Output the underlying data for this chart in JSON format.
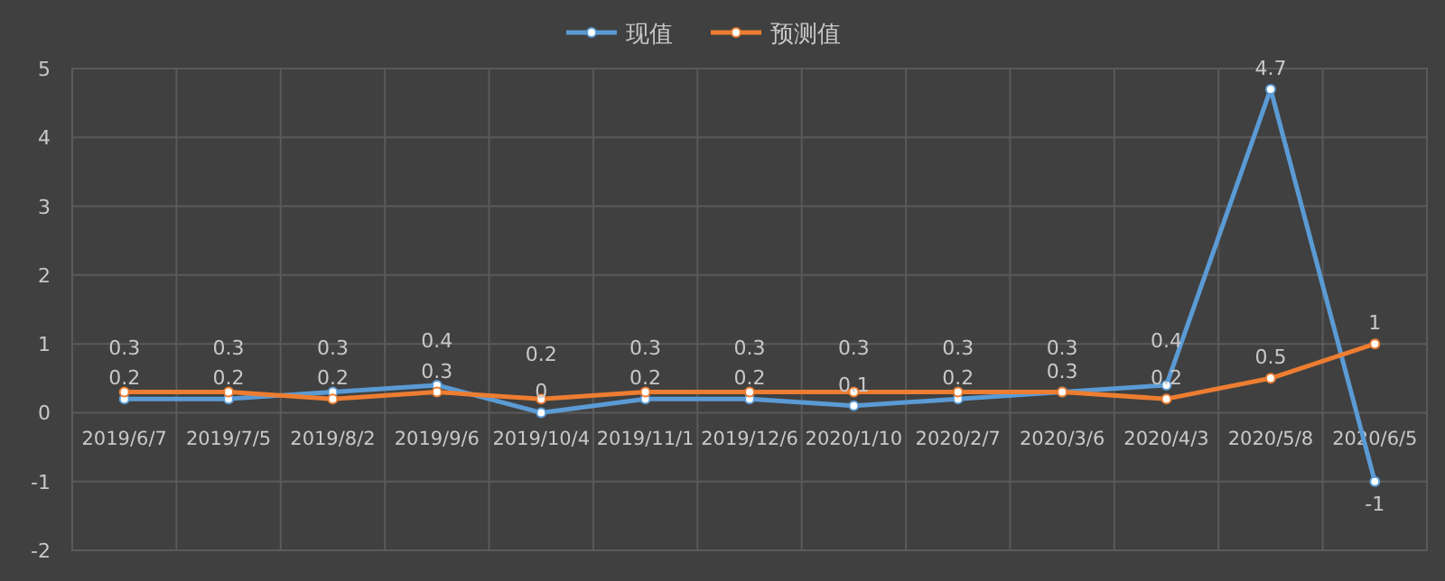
{
  "chart_data": {
    "type": "line",
    "categories": [
      "2019/6/7",
      "2019/7/5",
      "2019/8/2",
      "2019/9/6",
      "2019/10/4",
      "2019/11/1",
      "2019/12/6",
      "2020/1/10",
      "2020/2/7",
      "2020/3/6",
      "2020/4/3",
      "2020/5/8",
      "2020/6/5"
    ],
    "series": [
      {
        "name": "现值",
        "color": "#5b9bd5",
        "values": [
          0.2,
          0.2,
          0.3,
          0.4,
          0,
          0.2,
          0.2,
          0.1,
          0.2,
          0.3,
          0.4,
          4.7,
          -1
        ]
      },
      {
        "name": "预测值",
        "color": "#ed7d31",
        "values": [
          0.3,
          0.3,
          0.2,
          0.3,
          0.2,
          0.3,
          0.3,
          0.3,
          0.3,
          0.3,
          0.2,
          0.5,
          1
        ]
      }
    ],
    "ylim": [
      -2,
      5
    ],
    "yticks": [
      -2,
      -1,
      0,
      1,
      2,
      3,
      4,
      5
    ],
    "grid": true,
    "legend": "top",
    "marker": "circle",
    "data_labels": true
  }
}
